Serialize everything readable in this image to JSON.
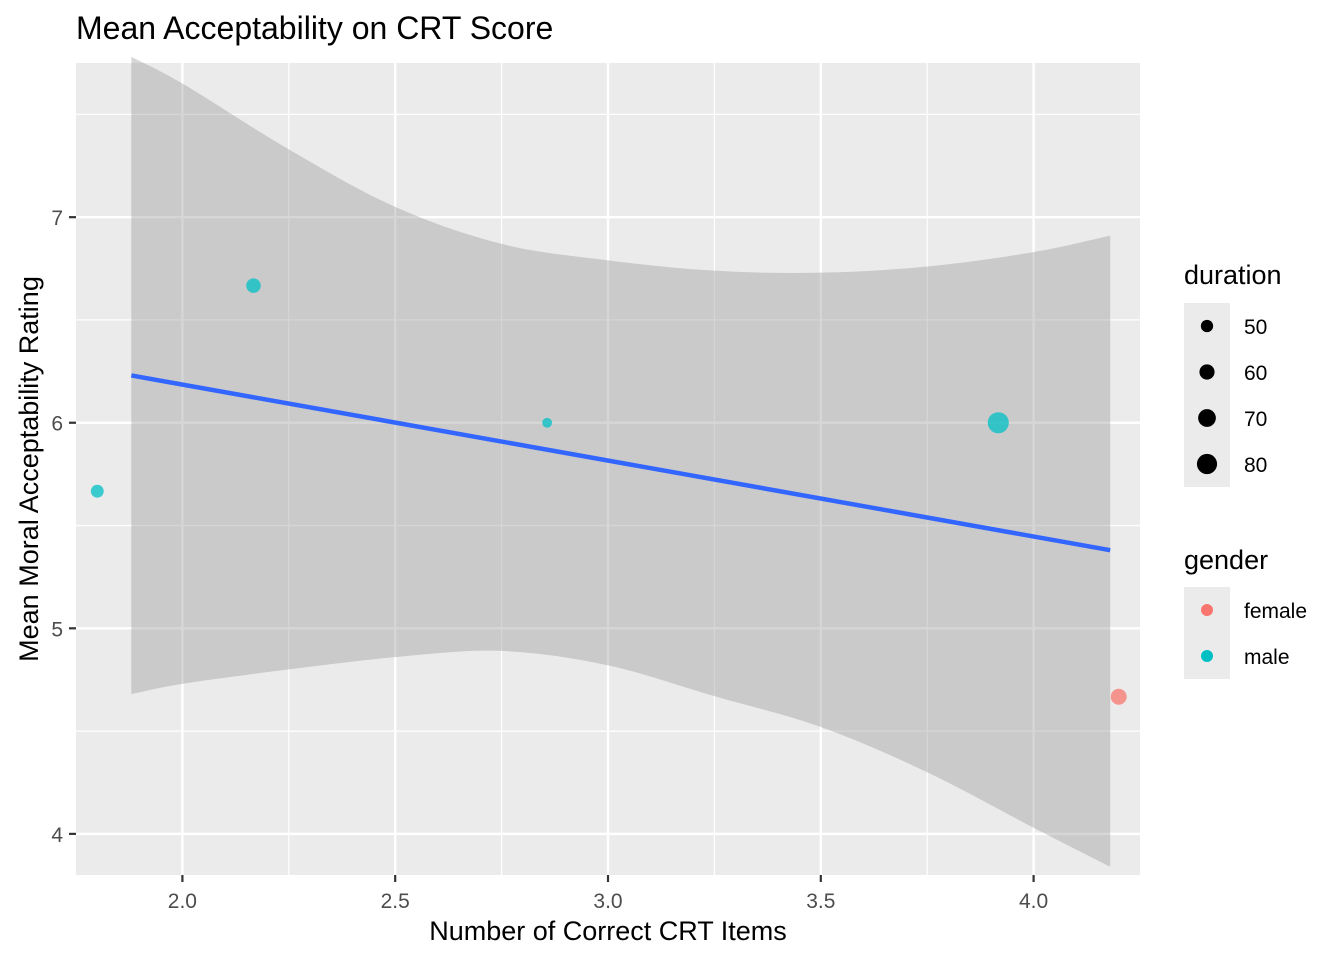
{
  "chart_data": {
    "type": "scatter",
    "title": "Mean Acceptability on CRT Score",
    "xlabel": "Number of Correct CRT Items",
    "ylabel": "Mean Moral Acceptability Rating",
    "xlim": [
      1.75,
      4.25
    ],
    "ylim": [
      3.8,
      7.75
    ],
    "x_ticks": [
      2.0,
      2.5,
      3.0,
      3.5,
      4.0
    ],
    "x_tick_labels": [
      "2.0",
      "2.5",
      "3.0",
      "3.5",
      "4.0"
    ],
    "y_ticks": [
      4,
      5,
      6,
      7
    ],
    "y_tick_labels": [
      "4",
      "5",
      "6",
      "7"
    ],
    "grid": true,
    "points": [
      {
        "x": 1.8,
        "y": 5.667,
        "duration": 52,
        "gender": "male"
      },
      {
        "x": 2.167,
        "y": 6.667,
        "duration": 58,
        "gender": "male"
      },
      {
        "x": 2.857,
        "y": 6.0,
        "duration": 42,
        "gender": "male"
      },
      {
        "x": 3.917,
        "y": 6.0,
        "duration": 84,
        "gender": "male"
      },
      {
        "x": 4.2,
        "y": 4.667,
        "duration": 63,
        "gender": "female"
      }
    ],
    "trend_line": {
      "method": "lm",
      "color": "#3366ff",
      "x": [
        1.88,
        4.18
      ],
      "y": [
        6.23,
        5.38
      ],
      "confidence_band": {
        "x": [
          1.88,
          2.0,
          2.25,
          2.5,
          2.75,
          3.0,
          3.25,
          3.5,
          3.75,
          4.0,
          4.18
        ],
        "upper": [
          7.78,
          7.65,
          7.33,
          7.05,
          6.87,
          6.79,
          6.74,
          6.73,
          6.76,
          6.83,
          6.91
        ],
        "lower": [
          4.68,
          4.73,
          4.8,
          4.86,
          4.89,
          4.82,
          4.67,
          4.52,
          4.3,
          4.03,
          3.84
        ]
      }
    },
    "legend": {
      "placement": "right",
      "size": {
        "title": "duration",
        "entries": [
          50,
          60,
          70,
          80
        ]
      },
      "color": {
        "title": "gender",
        "entries": [
          {
            "label": "female",
            "color": "#f8766d"
          },
          {
            "label": "male",
            "color": "#00bfc4"
          }
        ]
      }
    }
  }
}
